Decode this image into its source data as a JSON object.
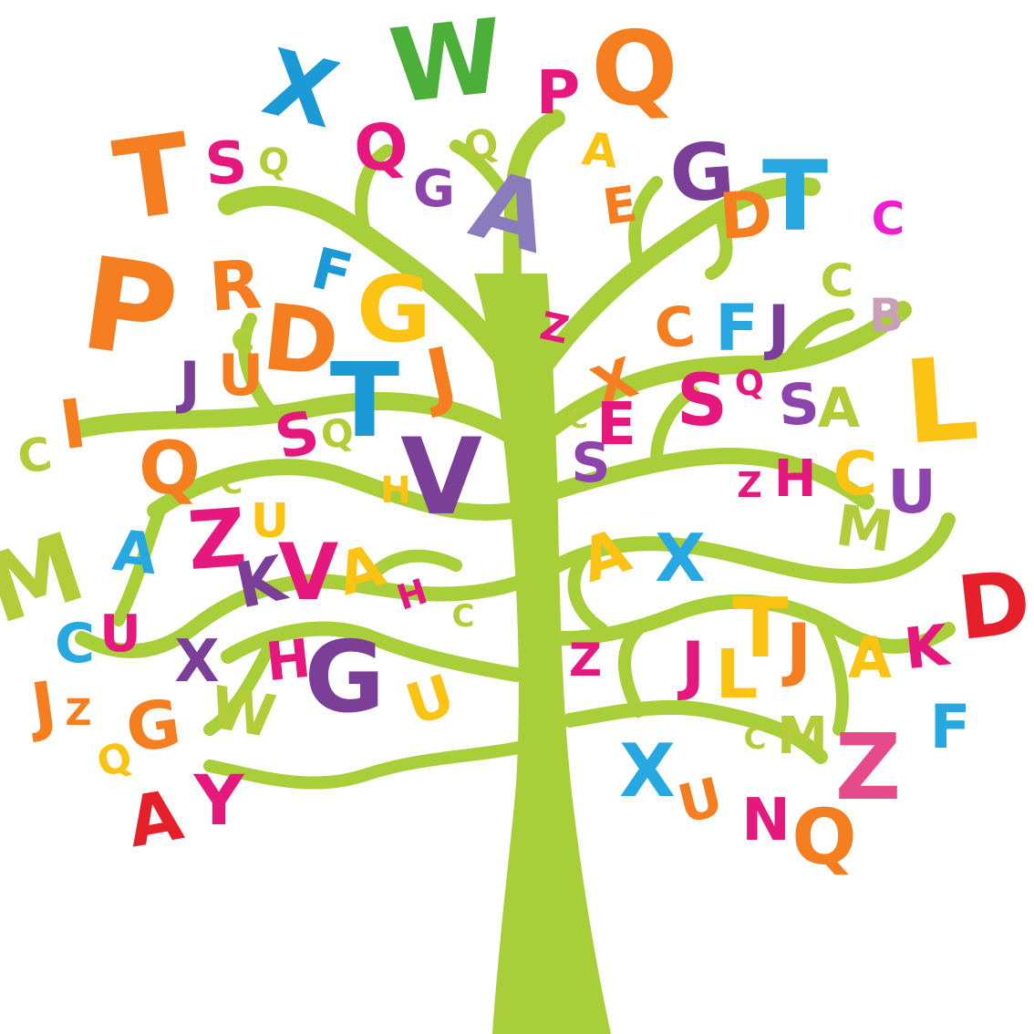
{
  "colors": {
    "tree": "#a8cf3a",
    "background": "#ffffff",
    "palette": {
      "orange": "#f57e20",
      "magenta": "#e5197d",
      "pink": "#e64a8b",
      "purple": "#7b3f98",
      "violet": "#8e44ad",
      "blue": "#1b9ad6",
      "sky": "#28a8e0",
      "green": "#4caf3a",
      "lime": "#b5cc3a",
      "yellow": "#fbc313",
      "red": "#e5202b",
      "lilac": "#8a7bbd",
      "rose": "#c9a0b8",
      "fuchsia": "#ee1fcf"
    }
  },
  "letters": [
    {
      "char": "P",
      "color": "orange"
    },
    {
      "char": "T",
      "color": "orange"
    },
    {
      "char": "S",
      "color": "magenta"
    },
    {
      "char": "Q",
      "color": "lime"
    },
    {
      "char": "X",
      "color": "blue"
    },
    {
      "char": "W",
      "color": "green"
    },
    {
      "char": "Q",
      "color": "magenta"
    },
    {
      "char": "P",
      "color": "magenta"
    },
    {
      "char": "Q",
      "color": "orange"
    },
    {
      "char": "Q",
      "color": "lime"
    },
    {
      "char": "A",
      "color": "yellow"
    },
    {
      "char": "G",
      "color": "violet"
    },
    {
      "char": "T",
      "color": "sky"
    },
    {
      "char": "C",
      "color": "fuchsia"
    },
    {
      "char": "G",
      "color": "purple"
    },
    {
      "char": "A",
      "color": "lilac"
    },
    {
      "char": "E",
      "color": "orange"
    },
    {
      "char": "D",
      "color": "orange"
    },
    {
      "char": "P",
      "color": "magenta"
    },
    {
      "char": "R",
      "color": "orange"
    },
    {
      "char": "F",
      "color": "blue"
    },
    {
      "char": "D",
      "color": "orange"
    },
    {
      "char": "G",
      "color": "yellow"
    },
    {
      "char": "C",
      "color": "lime"
    },
    {
      "char": "B",
      "color": "rose"
    },
    {
      "char": "C",
      "color": "orange"
    },
    {
      "char": "F",
      "color": "sky"
    },
    {
      "char": "J",
      "color": "purple"
    },
    {
      "char": "Z",
      "color": "magenta"
    },
    {
      "char": "I",
      "color": "orange"
    },
    {
      "char": "C",
      "color": "lime"
    },
    {
      "char": "J",
      "color": "purple"
    },
    {
      "char": "U",
      "color": "orange"
    },
    {
      "char": "C",
      "color": "lime"
    },
    {
      "char": "J",
      "color": "orange"
    },
    {
      "char": "T",
      "color": "blue"
    },
    {
      "char": "X",
      "color": "orange"
    },
    {
      "char": "S",
      "color": "magenta"
    },
    {
      "char": "Q",
      "color": "lime"
    },
    {
      "char": "S",
      "color": "violet"
    },
    {
      "char": "A",
      "color": "lime"
    },
    {
      "char": "L",
      "color": "yellow"
    },
    {
      "char": "S",
      "color": "violet"
    },
    {
      "char": "Q",
      "color": "magenta"
    },
    {
      "char": "V",
      "color": "purple"
    },
    {
      "char": "C",
      "color": "lime"
    },
    {
      "char": "E",
      "color": "magenta"
    },
    {
      "char": "S",
      "color": "magenta"
    },
    {
      "char": "Q",
      "color": "orange"
    },
    {
      "char": "C",
      "color": "lime"
    },
    {
      "char": "H",
      "color": "yellow"
    },
    {
      "char": "S",
      "color": "violet"
    },
    {
      "char": "Z",
      "color": "magenta"
    },
    {
      "char": "H",
      "color": "magenta"
    },
    {
      "char": "C",
      "color": "yellow"
    },
    {
      "char": "U",
      "color": "violet"
    },
    {
      "char": "M",
      "color": "lime"
    },
    {
      "char": "M",
      "color": "lime"
    },
    {
      "char": "A",
      "color": "sky"
    },
    {
      "char": "Z",
      "color": "magenta"
    },
    {
      "char": "U",
      "color": "yellow"
    },
    {
      "char": "K",
      "color": "purple"
    },
    {
      "char": "V",
      "color": "magenta"
    },
    {
      "char": "A",
      "color": "yellow"
    },
    {
      "char": "H",
      "color": "magenta"
    },
    {
      "char": "C",
      "color": "lime"
    },
    {
      "char": "A",
      "color": "yellow"
    },
    {
      "char": "X",
      "color": "sky"
    },
    {
      "char": "D",
      "color": "red"
    },
    {
      "char": "C",
      "color": "sky"
    },
    {
      "char": "U",
      "color": "magenta"
    },
    {
      "char": "T",
      "color": "yellow"
    },
    {
      "char": "J",
      "color": "orange"
    },
    {
      "char": "A",
      "color": "yellow"
    },
    {
      "char": "K",
      "color": "magenta"
    },
    {
      "char": "X",
      "color": "purple"
    },
    {
      "char": "H",
      "color": "magenta"
    },
    {
      "char": "G",
      "color": "purple"
    },
    {
      "char": "Z",
      "color": "magenta"
    },
    {
      "char": "J",
      "color": "magenta"
    },
    {
      "char": "L",
      "color": "yellow"
    },
    {
      "char": "J",
      "color": "orange"
    },
    {
      "char": "Z",
      "color": "orange"
    },
    {
      "char": "G",
      "color": "orange"
    },
    {
      "char": "W",
      "color": "lime"
    },
    {
      "char": "U",
      "color": "yellow"
    },
    {
      "char": "C",
      "color": "lime"
    },
    {
      "char": "M",
      "color": "lime"
    },
    {
      "char": "Z",
      "color": "pink"
    },
    {
      "char": "F",
      "color": "sky"
    },
    {
      "char": "Q",
      "color": "yellow"
    },
    {
      "char": "A",
      "color": "red"
    },
    {
      "char": "Y",
      "color": "magenta"
    },
    {
      "char": "X",
      "color": "sky"
    },
    {
      "char": "U",
      "color": "orange"
    },
    {
      "char": "N",
      "color": "magenta"
    },
    {
      "char": "Q",
      "color": "orange"
    }
  ]
}
